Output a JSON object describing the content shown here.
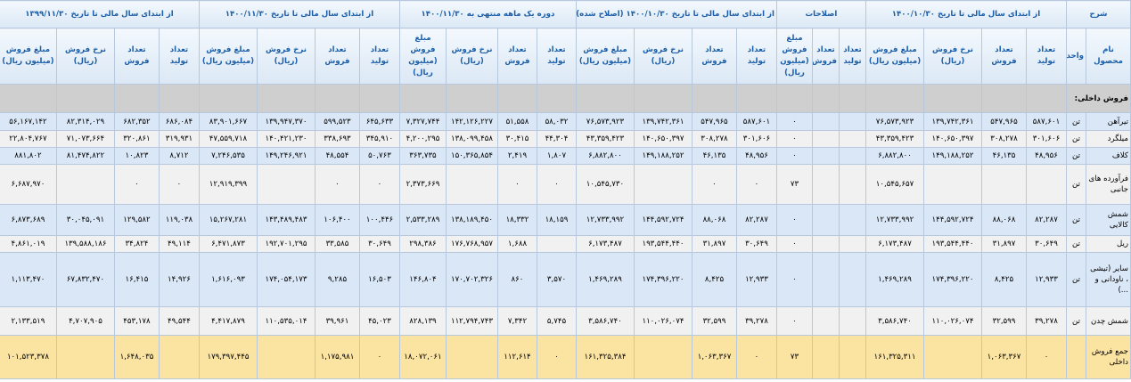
{
  "table": {
    "header_groups": [
      {
        "title": "شرح",
        "columns": [
          "نام محصول",
          "واحد"
        ]
      },
      {
        "title": "از ابتدای سال مالی تا تاریخ ۱۴۰۰/۱۰/۳۰",
        "columns": [
          "تعداد تولید",
          "تعداد فروش",
          "نرخ فروش (ریال)",
          "مبلغ فروش (میلیون ریال)"
        ]
      },
      {
        "title": "اصلاحات",
        "columns": [
          "تعداد تولید",
          "تعداد فروش",
          "مبلغ فروش (میلیون ریال)"
        ]
      },
      {
        "title": "از ابتدای سال مالی تا تاریخ ۱۴۰۰/۱۰/۳۰ (اصلاح شده)",
        "columns": [
          "تعداد تولید",
          "تعداد فروش",
          "نرخ فروش (ریال)",
          "مبلغ فروش (میلیون ریال)"
        ]
      },
      {
        "title": "دوره یک ماهه منتهی به ۱۴۰۰/۱۱/۳۰",
        "columns": [
          "تعداد تولید",
          "تعداد فروش",
          "نرخ فروش (ریال)",
          "مبلغ فروش (میلیون ریال)"
        ]
      },
      {
        "title": "از ابتدای سال مالی تا تاریخ ۱۴۰۰/۱۱/۳۰",
        "columns": [
          "تعداد تولید",
          "تعداد فروش",
          "نرخ فروش (ریال)",
          "مبلغ فروش (میلیون ریال)"
        ]
      },
      {
        "title": "از ابتدای سال مالی تا تاریخ ۱۳۹۹/۱۱/۳۰",
        "columns": [
          "تعداد تولید",
          "تعداد فروش",
          "نرخ فروش (ریال)",
          "مبلغ فروش (میلیون ریال)"
        ]
      }
    ],
    "section": "فروش داخلی:",
    "rows": [
      {
        "name": "تیرآهن",
        "unit": "تن",
        "cells": [
          "۵۸۷,۶۰۱",
          "۵۴۷,۹۶۵",
          "۱۳۹,۷۴۲,۳۶۱",
          "۷۶,۵۷۳,۹۲۳",
          null,
          null,
          "۰",
          "۵۸۷,۶۰۱",
          "۵۴۷,۹۶۵",
          "۱۳۹,۷۴۲,۳۶۱",
          "۷۶,۵۷۳,۹۲۳",
          "۵۸,۰۳۲",
          "۵۱,۵۵۸",
          "۱۴۲,۱۲۶,۲۲۷",
          "۷,۳۲۷,۷۴۴",
          "۶۴۵,۶۳۳",
          "۵۹۹,۵۲۳",
          "۱۳۹,۹۴۷,۳۷۰",
          "۸۳,۹۰۱,۶۶۷",
          "۶۸۶,۰۸۴",
          "۶۸۲,۳۵۲",
          "۸۲,۳۱۴,۰۲۹",
          "۵۶,۱۶۷,۱۴۲"
        ]
      },
      {
        "name": "میلگرد",
        "unit": "تن",
        "cells": [
          "۳۰۱,۶۰۶",
          "۳۰۸,۲۷۸",
          "۱۴۰,۶۵۰,۳۹۷",
          "۴۳,۳۵۹,۴۲۳",
          null,
          null,
          "۰",
          "۳۰۱,۶۰۶",
          "۳۰۸,۲۷۸",
          "۱۴۰,۶۵۰,۳۹۷",
          "۴۳,۳۵۹,۴۲۳",
          "۴۴,۳۰۴",
          "۳۰,۴۱۵",
          "۱۳۸,۰۹۹,۴۵۸",
          "۴,۲۰۰,۲۹۵",
          "۳۴۵,۹۱۰",
          "۳۳۸,۶۹۳",
          "۱۴۰,۴۲۱,۲۳۰",
          "۴۷,۵۵۹,۷۱۸",
          "۳۱۹,۹۳۱",
          "۳۲۰,۸۶۱",
          "۷۱,۰۷۳,۶۶۴",
          "۲۲,۸۰۴,۷۶۷"
        ]
      },
      {
        "name": "کلاف",
        "unit": "تن",
        "cells": [
          "۴۸,۹۵۶",
          "۴۶,۱۳۵",
          "۱۴۹,۱۸۸,۲۵۲",
          "۶,۸۸۲,۸۰۰",
          null,
          null,
          "۰",
          "۴۸,۹۵۶",
          "۴۶,۱۳۵",
          "۱۴۹,۱۸۸,۲۵۲",
          "۶,۸۸۲,۸۰۰",
          "۱,۸۰۷",
          "۲,۴۱۹",
          "۱۵۰,۳۶۵,۸۵۴",
          "۳۶۳,۷۳۵",
          "۵۰,۷۶۳",
          "۴۸,۵۵۴",
          "۱۴۹,۲۴۶,۹۲۱",
          "۷,۲۴۶,۵۳۵",
          "۸,۷۱۲",
          "۱۰,۸۲۳",
          "۸۱,۴۷۴,۸۲۲",
          "۸۸۱,۸۰۲"
        ]
      },
      {
        "name": "فرآورده های جانبی",
        "unit": "تن",
        "cells": [
          null,
          null,
          null,
          "۱۰,۵۴۵,۶۵۷",
          null,
          null,
          "۷۳",
          "۰",
          "۰",
          null,
          "۱۰,۵۴۵,۷۳۰",
          "۰",
          "۰",
          null,
          "۲,۳۷۳,۶۶۹",
          "۰",
          "۰",
          null,
          "۱۲,۹۱۹,۳۹۹",
          "۰",
          "۰",
          null,
          "۶,۶۸۷,۹۷۰"
        ]
      },
      {
        "name": "شمش کالایی",
        "unit": "تن",
        "cells": [
          "۸۲,۲۸۷",
          "۸۸,۰۶۸",
          "۱۴۴,۵۹۲,۷۲۴",
          "۱۲,۷۳۳,۹۹۲",
          null,
          null,
          "۰",
          "۸۲,۲۸۷",
          "۸۸,۰۶۸",
          "۱۴۴,۵۹۲,۷۲۴",
          "۱۲,۷۳۳,۹۹۲",
          "۱۸,۱۵۹",
          "۱۸,۳۳۲",
          "۱۳۸,۱۸۹,۴۵۰",
          "۲,۵۳۳,۲۸۹",
          "۱۰۰,۴۴۶",
          "۱۰۶,۴۰۰",
          "۱۴۳,۴۸۹,۴۸۳",
          "۱۵,۲۶۷,۲۸۱",
          "۱۱۹,۰۳۸",
          "۱۲۹,۵۸۲",
          "۳۰,۰۴۵,۰۹۱",
          "۶,۸۷۳,۶۸۹"
        ]
      },
      {
        "name": "ریل",
        "unit": "تن",
        "cells": [
          "۳۰,۶۴۹",
          "۳۱,۸۹۷",
          "۱۹۳,۵۴۴,۴۴۰",
          "۶,۱۷۳,۴۸۷",
          null,
          null,
          "۰",
          "۳۰,۶۴۹",
          "۳۱,۸۹۷",
          "۱۹۳,۵۴۴,۴۴۰",
          "۶,۱۷۳,۴۸۷",
          null,
          "۱,۶۸۸",
          "۱۷۶,۷۶۸,۹۵۷",
          "۲۹۸,۳۸۶",
          "۳۰,۶۴۹",
          "۳۳,۵۸۵",
          "۱۹۲,۷۰۱,۲۹۵",
          "۶,۴۷۱,۸۷۳",
          "۴۹,۱۱۴",
          "۳۴,۸۲۴",
          "۱۳۹,۵۸۸,۱۸۶",
          "۴,۸۶۱,۰۱۹"
        ]
      },
      {
        "name": "سایر (تیشی ، ناودانی و ...)",
        "unit": "تن",
        "cells": [
          "۱۲,۹۳۳",
          "۸,۴۲۵",
          "۱۷۴,۳۹۶,۲۲۰",
          "۱,۴۶۹,۲۸۹",
          null,
          null,
          "۰",
          "۱۲,۹۳۳",
          "۸,۴۲۵",
          "۱۷۴,۳۹۶,۲۲۰",
          "۱,۴۶۹,۲۸۹",
          "۳,۵۷۰",
          "۸۶۰",
          "۱۷۰,۷۰۲,۳۲۶",
          "۱۴۶,۸۰۴",
          "۱۶,۵۰۳",
          "۹,۲۸۵",
          "۱۷۴,۰۵۴,۱۷۳",
          "۱,۶۱۶,۰۹۳",
          "۱۴,۹۲۶",
          "۱۶,۴۱۵",
          "۶۷,۸۳۲,۴۷۰",
          "۱,۱۱۳,۴۷۰"
        ]
      },
      {
        "name": "شمش چدن",
        "unit": "تن",
        "cells": [
          "۳۹,۲۷۸",
          "۳۲,۵۹۹",
          "۱۱۰,۰۲۶,۰۷۴",
          "۳,۵۸۶,۷۴۰",
          null,
          null,
          "۰",
          "۳۹,۲۷۸",
          "۳۲,۵۹۹",
          "۱۱۰,۰۲۶,۰۷۴",
          "۳,۵۸۶,۷۴۰",
          "۵,۷۴۵",
          "۷,۳۴۲",
          "۱۱۲,۷۹۴,۷۴۳",
          "۸۲۸,۱۳۹",
          "۴۵,۰۲۳",
          "۳۹,۹۶۱",
          "۱۱۰,۵۳۵,۰۱۴",
          "۴,۴۱۷,۸۷۹",
          "۴۹,۵۴۴",
          "۴۵۳,۱۷۸",
          "۴,۷۰۷,۹۰۵",
          "۲,۱۳۳,۵۱۹"
        ]
      },
      {
        "name": "جمع فروش داخلی",
        "unit": null,
        "cells": [
          "۰",
          "۱,۰۶۳,۳۶۷",
          null,
          "۱۶۱,۳۲۵,۳۱۱",
          null,
          null,
          "۷۳",
          "۰",
          "۱,۰۶۳,۳۶۷",
          null,
          "۱۶۱,۳۲۵,۳۸۴",
          "۰",
          "۱۱۲,۶۱۴",
          null,
          "۱۸,۰۷۲,۰۶۱",
          "۰",
          "۱,۱۷۵,۹۸۱",
          null,
          "۱۷۹,۳۹۷,۴۴۵",
          null,
          "۱,۶۴۸,۰۳۵",
          null,
          "۱۰۱,۵۲۳,۳۷۸"
        ]
      }
    ]
  }
}
